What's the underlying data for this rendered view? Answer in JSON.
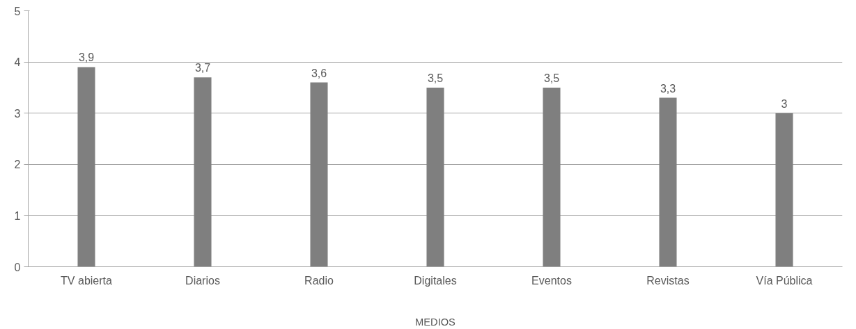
{
  "chart_data": {
    "type": "bar",
    "xlabel": "MEDIOS",
    "categories": [
      "TV abierta",
      "Diarios",
      "Radio",
      "Digitales",
      "Eventos",
      "Revistas",
      "Vía Pública"
    ],
    "values": [
      3.9,
      3.7,
      3.6,
      3.5,
      3.5,
      3.3,
      3
    ],
    "value_labels": [
      "3,9",
      "3,7",
      "3,6",
      "3,5",
      "3,5",
      "3,3",
      "3"
    ],
    "color": "#7f7f7f",
    "ylim": [
      0,
      5
    ],
    "yticks": [
      0,
      1,
      2,
      3,
      4,
      5
    ],
    "grid": "y"
  }
}
